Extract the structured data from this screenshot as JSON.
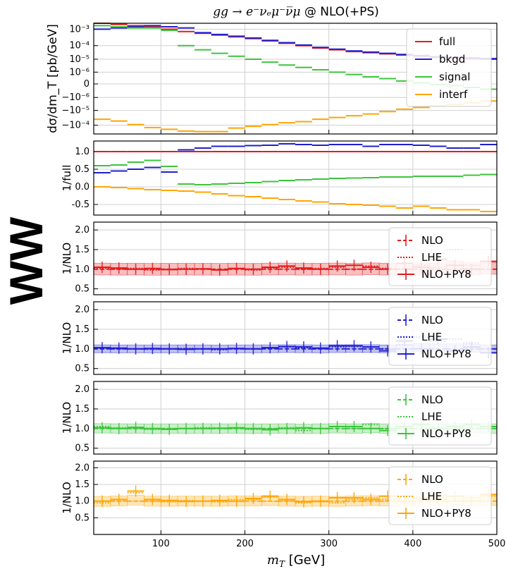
{
  "title_math": "gg → e⁻νₑμ⁻ν̅μ",
  "title_suffix": " @ NLO(+PS)",
  "process_label": "WW",
  "colors": {
    "full": "#e41a1c",
    "bkgd": "#1f1fd0",
    "signal": "#3cc43c",
    "interf": "#ffa500",
    "process": "#1a9ba8",
    "grid": "#d0d0d0"
  },
  "chart_data": {
    "type": "line",
    "x_label": "m_T [GeV]",
    "x_range": [
      20,
      500
    ],
    "x_ticks": [
      100,
      200,
      300,
      400,
      500
    ],
    "x_bins": [
      20,
      40,
      60,
      80,
      100,
      120,
      140,
      160,
      180,
      200,
      220,
      240,
      260,
      280,
      300,
      320,
      340,
      360,
      380,
      400,
      420,
      440,
      460,
      480,
      500
    ],
    "panels": [
      {
        "id": "dist",
        "ylabel": "dσ/dm_T [pb/GeV]",
        "yscale": "symlog",
        "ytick_labels": [
          "10⁻³",
          "10⁻⁴",
          "10⁻⁵",
          "10⁻⁶",
          "0",
          "−10⁻⁶",
          "−10⁻⁵",
          "−10⁻⁴"
        ],
        "legend": [
          "full",
          "bkgd",
          "signal",
          "interf"
        ],
        "series": [
          {
            "name": "full",
            "values": [
              1.3,
              1.2,
              1.1,
              1.0,
              0.8,
              0.6,
              0.45,
              0.3,
              0.15,
              0.0,
              -0.2,
              -0.4,
              -0.6,
              -0.8,
              -0.95,
              -1.1,
              -1.2,
              -1.3,
              -1.4,
              -1.5,
              -1.6,
              -1.65,
              -1.7,
              -1.75
            ]
          },
          {
            "name": "bkgd",
            "values": [
              0.8,
              0.9,
              1.0,
              1.1,
              1.0,
              0.9,
              0.5,
              0.35,
              0.2,
              0.05,
              -0.15,
              -0.35,
              -0.55,
              -0.75,
              -0.9,
              -1.05,
              -1.15,
              -1.25,
              -1.35,
              -1.45,
              -1.55,
              -1.6,
              -1.65,
              -1.7
            ]
          },
          {
            "name": "signal",
            "values": [
              1.1,
              1.0,
              0.9,
              0.9,
              0.7,
              -0.6,
              -0.95,
              -1.25,
              -1.5,
              -1.75,
              -2.0,
              -2.25,
              -2.45,
              -2.65,
              -2.85,
              -3.05,
              -3.25,
              -3.4,
              -3.6,
              -3.75,
              -3.9,
              -4.0,
              -4.15,
              -4.3
            ]
          },
          {
            "name": "interf",
            "values": [
              -6.85,
              -7.0,
              -7.3,
              -7.55,
              -7.7,
              -7.85,
              -7.9,
              -7.9,
              -7.6,
              -7.45,
              -7.3,
              -7.15,
              -7.05,
              -6.85,
              -6.7,
              -6.55,
              -6.4,
              -6.2,
              -6.0,
              -5.85,
              -5.7,
              -5.6,
              -5.45,
              -5.3
            ]
          }
        ]
      },
      {
        "id": "ratio_full",
        "ylabel": "1/full",
        "ylim": [
          -0.8,
          1.3
        ],
        "yticks": [
          -0.5,
          0.0,
          0.5,
          1.0
        ],
        "series": [
          {
            "name": "full",
            "values": [
              1.0,
              1.0,
              1.0,
              1.0,
              1.0,
              1.0,
              1.0,
              1.0,
              1.0,
              1.0,
              1.0,
              1.0,
              1.0,
              1.0,
              1.0,
              1.0,
              1.0,
              1.0,
              1.0,
              1.0,
              1.0,
              1.0,
              1.0,
              1.0
            ]
          },
          {
            "name": "bkgd",
            "values": [
              0.4,
              0.45,
              0.5,
              0.55,
              0.42,
              1.05,
              1.1,
              1.15,
              1.15,
              1.17,
              1.18,
              1.22,
              1.2,
              1.18,
              1.2,
              1.2,
              1.15,
              1.2,
              1.2,
              1.18,
              1.15,
              1.1,
              1.1,
              1.2
            ]
          },
          {
            "name": "signal",
            "values": [
              0.6,
              0.62,
              0.7,
              0.75,
              0.58,
              0.08,
              0.06,
              0.08,
              0.1,
              0.12,
              0.15,
              0.18,
              0.2,
              0.22,
              0.24,
              0.25,
              0.26,
              0.28,
              0.28,
              0.3,
              0.3,
              0.3,
              0.33,
              0.35
            ]
          },
          {
            "name": "interf",
            "values": [
              0.0,
              -0.02,
              -0.05,
              -0.08,
              -0.1,
              -0.12,
              -0.15,
              -0.2,
              -0.25,
              -0.28,
              -0.32,
              -0.36,
              -0.4,
              -0.43,
              -0.48,
              -0.5,
              -0.52,
              -0.55,
              -0.6,
              -0.55,
              -0.6,
              -0.65,
              -0.65,
              -0.7
            ]
          }
        ]
      },
      {
        "id": "full_nlo",
        "ylabel": "1/NLO",
        "ylim": [
          0.35,
          2.2
        ],
        "yticks": [
          0.5,
          1.0,
          1.5,
          2.0
        ],
        "color_key": "full",
        "legend": [
          "NLO",
          "LHE",
          "NLO+PY8"
        ],
        "series": [
          {
            "name": "NLO",
            "values": [
              1.0,
              1.0,
              1.0,
              1.0,
              1.0,
              1.0,
              1.0,
              1.0,
              1.0,
              1.0,
              1.0,
              1.0,
              1.0,
              1.0,
              1.0,
              1.0,
              1.0,
              1.0,
              1.0,
              1.0,
              1.0,
              1.0,
              1.0,
              1.0
            ]
          },
          {
            "name": "LHE",
            "values": [
              1.03,
              1.0,
              1.02,
              0.98,
              1.0,
              1.02,
              1.0,
              0.99,
              1.01,
              0.98,
              1.03,
              1.05,
              1.0,
              1.02,
              1.05,
              1.0,
              1.08,
              1.02,
              1.0,
              1.1,
              1.05,
              1.5,
              1.1,
              1.2
            ]
          },
          {
            "name": "NLO+PY8",
            "values": [
              1.05,
              1.03,
              1.0,
              1.02,
              0.99,
              1.0,
              1.01,
              0.98,
              1.02,
              1.0,
              1.05,
              1.08,
              1.03,
              1.0,
              1.08,
              1.1,
              1.05,
              1.0,
              1.15,
              1.05,
              1.25,
              1.1,
              1.0,
              1.2
            ]
          }
        ],
        "band_halfwidth": 0.15
      },
      {
        "id": "bkgd_nlo",
        "ylabel": "1/NLO",
        "ylim": [
          0.35,
          2.2
        ],
        "yticks": [
          0.5,
          1.0,
          1.5,
          2.0
        ],
        "color_key": "bkgd",
        "legend": [
          "NLO",
          "LHE",
          "NLO+PY8"
        ],
        "series": [
          {
            "name": "NLO",
            "values": [
              1.0,
              1.0,
              1.0,
              1.0,
              1.0,
              1.0,
              1.0,
              1.0,
              1.0,
              1.0,
              1.0,
              1.0,
              1.0,
              1.0,
              1.0,
              1.0,
              1.0,
              1.0,
              1.0,
              1.0,
              1.0,
              1.0,
              1.0,
              1.0
            ]
          },
          {
            "name": "LHE",
            "values": [
              1.02,
              1.0,
              1.0,
              0.99,
              1.0,
              1.01,
              1.0,
              0.98,
              1.0,
              1.0,
              1.02,
              1.05,
              1.03,
              1.0,
              1.05,
              1.06,
              1.05,
              1.0,
              1.1,
              1.3,
              1.2,
              1.25,
              1.15,
              1.0
            ]
          },
          {
            "name": "NLO+PY8",
            "values": [
              1.03,
              1.02,
              1.0,
              1.01,
              1.0,
              0.99,
              1.0,
              1.0,
              1.01,
              1.0,
              1.03,
              1.06,
              1.05,
              1.02,
              1.08,
              1.08,
              1.05,
              0.95,
              1.2,
              1.0,
              1.25,
              0.95,
              1.05,
              0.9
            ]
          }
        ],
        "band_halfwidth": 0.1
      },
      {
        "id": "signal_nlo",
        "ylabel": "1/NLO",
        "ylim": [
          0.35,
          2.2
        ],
        "yticks": [
          0.5,
          1.0,
          1.5,
          2.0
        ],
        "color_key": "signal",
        "legend": [
          "NLO",
          "LHE",
          "NLO+PY8"
        ],
        "series": [
          {
            "name": "NLO",
            "values": [
              1.0,
              1.0,
              1.0,
              1.0,
              1.0,
              1.0,
              1.0,
              1.0,
              1.0,
              1.0,
              1.0,
              1.0,
              1.0,
              1.0,
              1.0,
              1.0,
              1.0,
              1.0,
              1.0,
              1.0,
              1.0,
              1.0,
              1.0,
              1.0
            ]
          },
          {
            "name": "LHE",
            "values": [
              1.05,
              1.02,
              1.0,
              0.98,
              1.0,
              1.0,
              1.02,
              1.0,
              1.0,
              0.98,
              1.0,
              1.02,
              0.95,
              1.0,
              1.05,
              1.0,
              1.1,
              1.0,
              1.05,
              1.1,
              1.0,
              1.05,
              1.1,
              1.0
            ]
          },
          {
            "name": "NLO+PY8",
            "values": [
              1.02,
              1.0,
              1.03,
              1.0,
              0.98,
              1.0,
              1.0,
              1.01,
              1.02,
              1.0,
              0.97,
              1.0,
              1.02,
              1.0,
              1.05,
              1.05,
              1.0,
              0.95,
              1.05,
              1.1,
              1.0,
              1.05,
              1.1,
              1.05
            ]
          }
        ],
        "band_halfwidth": 0.12
      },
      {
        "id": "interf_nlo",
        "ylabel": "1/NLO",
        "ylim": [
          0.0,
          2.2
        ],
        "yticks": [
          0.5,
          1.0,
          1.5,
          2.0
        ],
        "color_key": "interf",
        "legend": [
          "NLO",
          "LHE",
          "NLO+PY8"
        ],
        "series": [
          {
            "name": "NLO",
            "values": [
              1.0,
              1.0,
              1.0,
              1.0,
              1.0,
              1.0,
              1.0,
              1.0,
              1.0,
              1.0,
              1.0,
              1.0,
              1.0,
              1.0,
              1.0,
              1.0,
              1.0,
              1.0,
              1.0,
              1.0,
              1.0,
              1.0,
              1.0,
              1.0
            ]
          },
          {
            "name": "LHE",
            "values": [
              0.95,
              1.05,
              1.25,
              1.0,
              0.98,
              1.02,
              1.0,
              0.98,
              1.05,
              1.05,
              1.12,
              1.0,
              0.95,
              0.98,
              0.95,
              1.05,
              1.1,
              1.05,
              1.0,
              1.05,
              1.2,
              1.0,
              1.1,
              1.15
            ]
          },
          {
            "name": "NLO+PY8",
            "values": [
              1.0,
              1.05,
              1.3,
              1.05,
              1.02,
              0.99,
              1.0,
              1.02,
              1.0,
              1.08,
              1.15,
              1.05,
              0.98,
              1.0,
              1.1,
              1.1,
              1.05,
              1.15,
              1.0,
              1.1,
              1.05,
              1.15,
              1.0,
              1.2
            ]
          }
        ],
        "band_halfwidth": 0.15
      }
    ]
  }
}
